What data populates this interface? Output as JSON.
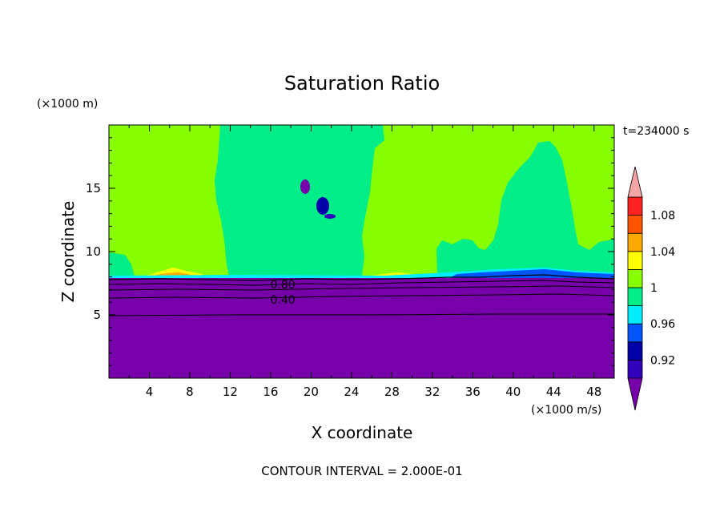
{
  "chart_data": {
    "type": "heatmap",
    "title": "Saturation Ratio",
    "xlabel": "X coordinate",
    "ylabel": "Z coordinate",
    "x_unit": "(×1000 m/s)",
    "y_unit": "(×1000 m)",
    "time_label": "t=234000 s",
    "footer": "CONTOUR INTERVAL = 2.000E-01",
    "xlim": [
      0,
      50
    ],
    "ylim": [
      0,
      20
    ],
    "x_ticks": [
      4,
      8,
      12,
      16,
      20,
      24,
      28,
      32,
      36,
      40,
      44,
      48
    ],
    "y_ticks": [
      5,
      10,
      15
    ],
    "colorbar": {
      "labels": [
        "1.08",
        "1.04",
        "1",
        "0.96",
        "0.92"
      ],
      "levels": [
        0.9,
        0.92,
        0.94,
        0.96,
        0.98,
        1.0,
        1.02,
        1.04,
        1.06,
        1.08,
        1.1
      ],
      "colors": [
        "#7700aa",
        "#3300bb",
        "#0000aa",
        "#0055ff",
        "#00eeff",
        "#00ee88",
        "#88ff00",
        "#ffff00",
        "#ffaa00",
        "#ff5500",
        "#ff2222",
        "#f4a4a4"
      ]
    },
    "contour_labels": [
      {
        "text": "0.80",
        "x": 17.2,
        "z": 7.4
      },
      {
        "text": "0.40",
        "x": 17.2,
        "z": 6.2
      }
    ],
    "regions": {
      "dry_top_z": 8.0,
      "supersaturated_x_ranges": [
        [
          0,
          10.5
        ],
        [
          25.5,
          42
        ]
      ],
      "saturated_x_ranges": [
        [
          10.5,
          25.5
        ],
        [
          42,
          50
        ]
      ]
    }
  }
}
